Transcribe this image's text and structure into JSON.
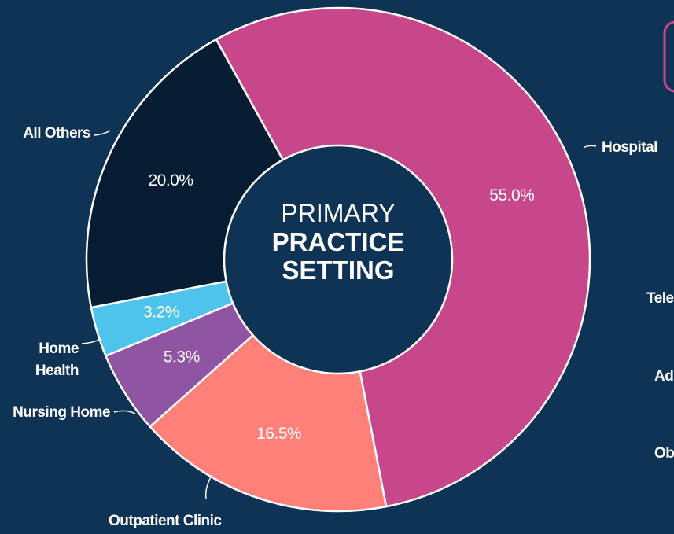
{
  "chart_data": {
    "type": "donut",
    "title": "PRIMARY",
    "title_bold": "PRACTICE SETTING",
    "categories": [
      "Hospital",
      "Outpatient Clinic",
      "Nursing Home",
      "Home Health",
      "All Others"
    ],
    "values": [
      55,
      16.5,
      5.3,
      3.2,
      20
    ],
    "value_labels": [
      "55.0%",
      "16.5%",
      "5.3%",
      "3.2%",
      "20.0%"
    ],
    "colors": [
      "#c8478b",
      "#ff7f79",
      "#9055a2",
      "#4ec4ec",
      "#051c33"
    ],
    "start_angle": -29,
    "legend_fragments": [
      "Tele",
      "Ad",
      "Ob"
    ]
  }
}
